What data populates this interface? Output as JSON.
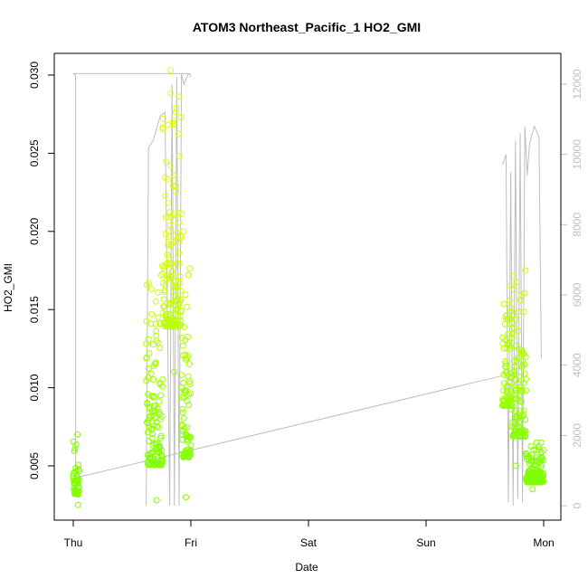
{
  "chart_data": {
    "type": "scatter",
    "title": "ATOM3 Northeast_Pacific_1 HO2_GMI",
    "xlabel": "Date",
    "ylabel": "HO2_GMI",
    "x_tick_labels": [
      "Thu",
      "Fri",
      "Sat",
      "Sun",
      "Mon"
    ],
    "x_range_days": [
      0,
      4
    ],
    "ylim": [
      0.0015,
      0.0305
    ],
    "y_ticks": [
      0.005,
      0.01,
      0.015,
      0.02,
      0.025,
      0.03
    ],
    "y_tick_labels": [
      "0.005",
      "0.010",
      "0.015",
      "0.020",
      "0.025",
      "0.030"
    ],
    "y2lim": [
      0,
      12400
    ],
    "y2_ticks": [
      0,
      2000,
      4000,
      6000,
      8000,
      10000,
      12000
    ],
    "y2_tick_labels": [
      "0",
      "2000",
      "4000",
      "6000",
      "8000",
      "10000",
      "12000"
    ],
    "grid": false,
    "colors": {
      "altitude_line": "#bebebe",
      "marker_low": "#7fff00",
      "marker_high": "#dfff00",
      "axis": "#000000"
    },
    "series": [
      {
        "role": "HO2_GMI",
        "marker": "open-circle",
        "segments": [
          {
            "x_start": 0.0,
            "x_end": 0.05,
            "min": 0.0025,
            "max": 0.007
          },
          {
            "x_start": 0.62,
            "x_end": 0.76,
            "min": 0.0028,
            "max": 0.0178
          },
          {
            "x_start": 0.76,
            "x_end": 0.92,
            "min": 0.011,
            "max": 0.0303
          },
          {
            "x_start": 0.92,
            "x_end": 1.0,
            "min": 0.003,
            "max": 0.02
          },
          {
            "x_start": 3.65,
            "x_end": 3.73,
            "min": 0.0075,
            "max": 0.0165
          },
          {
            "x_start": 3.73,
            "x_end": 3.85,
            "min": 0.005,
            "max": 0.0175
          },
          {
            "x_start": 3.85,
            "x_end": 4.0,
            "min": 0.0035,
            "max": 0.0065
          }
        ]
      },
      {
        "role": "altitude",
        "axis": "right",
        "points": [
          [
            0.0,
            12300
          ],
          [
            0.02,
            12300
          ],
          [
            0.1,
            12300
          ],
          [
            0.4,
            12300
          ],
          [
            0.9,
            12300
          ],
          [
            0.91,
            12300
          ],
          [
            0.92,
            12300
          ],
          [
            0.93,
            12300
          ],
          [
            1.0,
            12200
          ],
          [
            0.02,
            12300
          ],
          [
            0.03,
            800
          ],
          [
            0.03,
            800
          ],
          [
            3.65,
            3700
          ]
        ],
        "flight1": [
          [
            0.0,
            12300
          ],
          [
            1.0,
            12300
          ]
        ],
        "flight2": [
          [
            0.62,
            0
          ],
          [
            0.64,
            10200
          ],
          [
            0.68,
            10400
          ],
          [
            0.74,
            11100
          ],
          [
            0.78,
            11200
          ],
          [
            0.82,
            0
          ],
          [
            0.84,
            12000
          ],
          [
            0.86,
            0
          ],
          [
            0.88,
            12200
          ],
          [
            0.9,
            0
          ],
          [
            0.92,
            12300
          ],
          [
            0.94,
            12000
          ],
          [
            0.98,
            12300
          ]
        ],
        "flight3": [
          [
            3.65,
            9700
          ],
          [
            3.68,
            10000
          ],
          [
            3.7,
            100
          ],
          [
            3.72,
            9500
          ],
          [
            3.74,
            0
          ],
          [
            3.76,
            10400
          ],
          [
            3.78,
            200
          ],
          [
            3.8,
            10600
          ],
          [
            3.82,
            100
          ],
          [
            3.84,
            10800
          ],
          [
            3.86,
            9400
          ],
          [
            3.88,
            10300
          ],
          [
            3.92,
            10800
          ],
          [
            3.96,
            10500
          ],
          [
            3.98,
            4200
          ]
        ]
      }
    ]
  }
}
